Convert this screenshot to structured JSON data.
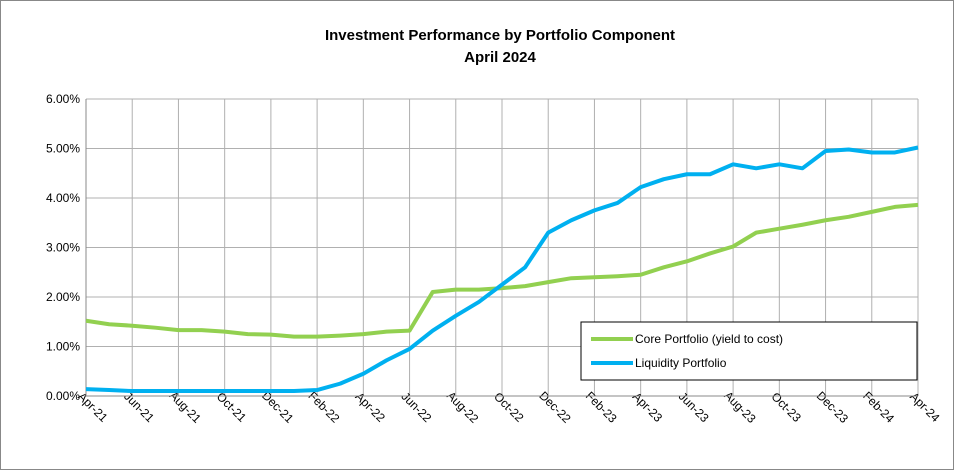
{
  "chart_data": {
    "type": "line",
    "title": "Investment Performance by Portfolio Component",
    "subtitle": "April 2024",
    "categories": [
      "Apr-21",
      null,
      "Jun-21",
      null,
      "Aug-21",
      null,
      "Oct-21",
      null,
      "Dec-21",
      null,
      "Feb-22",
      null,
      "Apr-22",
      null,
      "Jun-22",
      null,
      "Aug-22",
      null,
      "Oct-22",
      null,
      "Dec-22",
      null,
      "Feb-23",
      null,
      "Apr-23",
      null,
      "Jun-23",
      null,
      "Aug-23",
      null,
      "Oct-23",
      null,
      "Dec-23",
      null,
      "Feb-24",
      null,
      "Apr-24"
    ],
    "series": [
      {
        "name": "Core Portfolio (yield to cost)",
        "color": "#92d050",
        "values": [
          1.52,
          1.45,
          1.42,
          1.38,
          1.33,
          1.33,
          1.3,
          1.25,
          1.24,
          1.2,
          1.2,
          1.22,
          1.25,
          1.3,
          1.32,
          2.1,
          2.15,
          2.15,
          2.18,
          2.22,
          2.3,
          2.38,
          2.4,
          2.42,
          2.45,
          2.6,
          2.72,
          2.88,
          3.02,
          3.3,
          3.38,
          3.46,
          3.55,
          3.62,
          3.72,
          3.82,
          3.86
        ]
      },
      {
        "name": "Liquidity Portfolio",
        "color": "#00b0f0",
        "values": [
          0.14,
          0.12,
          0.1,
          0.1,
          0.1,
          0.1,
          0.1,
          0.1,
          0.1,
          0.1,
          0.12,
          0.25,
          0.45,
          0.72,
          0.95,
          1.32,
          1.62,
          1.9,
          2.25,
          2.6,
          3.3,
          3.55,
          3.75,
          3.9,
          4.22,
          4.38,
          4.48,
          4.48,
          4.68,
          4.6,
          4.68,
          4.6,
          4.95,
          4.98,
          4.92,
          4.92,
          5.02
        ]
      }
    ],
    "ylim": [
      0,
      6
    ],
    "yticks": [
      {
        "value": 0,
        "label": "0.00%"
      },
      {
        "value": 1,
        "label": "1.00%"
      },
      {
        "value": 2,
        "label": "2.00%"
      },
      {
        "value": 3,
        "label": "3.00%"
      },
      {
        "value": 4,
        "label": "4.00%"
      },
      {
        "value": 5,
        "label": "5.00%"
      },
      {
        "value": 6,
        "label": "6.00%"
      }
    ],
    "grid": true,
    "legend": "lower right"
  }
}
